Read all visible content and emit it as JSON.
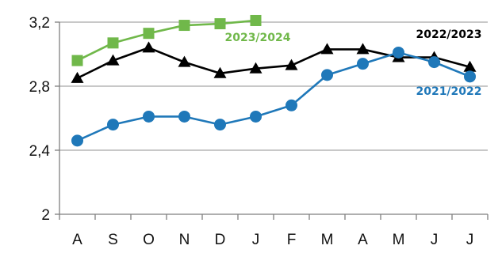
{
  "chart_data": {
    "type": "line",
    "categories": [
      "A",
      "S",
      "O",
      "N",
      "D",
      "J",
      "F",
      "M",
      "A",
      "M",
      "J",
      "J"
    ],
    "ylim": [
      2,
      3.2
    ],
    "yticks": [
      2,
      2.4,
      2.8,
      3.2
    ],
    "ytick_labels": [
      "2",
      "2,4",
      "2,8",
      "3,2"
    ],
    "grid": true,
    "series": [
      {
        "name": "2023/2024",
        "color": "#70b84a",
        "marker": "square",
        "values": [
          2.96,
          3.07,
          3.13,
          3.18,
          3.19,
          3.21,
          null,
          null,
          null,
          null,
          null,
          null
        ]
      },
      {
        "name": "2022/2023",
        "color": "#000000",
        "marker": "triangle",
        "values": [
          2.85,
          2.96,
          3.04,
          2.95,
          2.88,
          2.91,
          2.93,
          3.03,
          3.03,
          2.98,
          2.98,
          2.92
        ]
      },
      {
        "name": "2021/2022",
        "color": "#1f78b9",
        "marker": "circle",
        "values": [
          2.46,
          2.56,
          2.61,
          2.61,
          2.56,
          2.61,
          2.68,
          2.87,
          2.94,
          3.01,
          2.95,
          2.86
        ]
      }
    ]
  }
}
